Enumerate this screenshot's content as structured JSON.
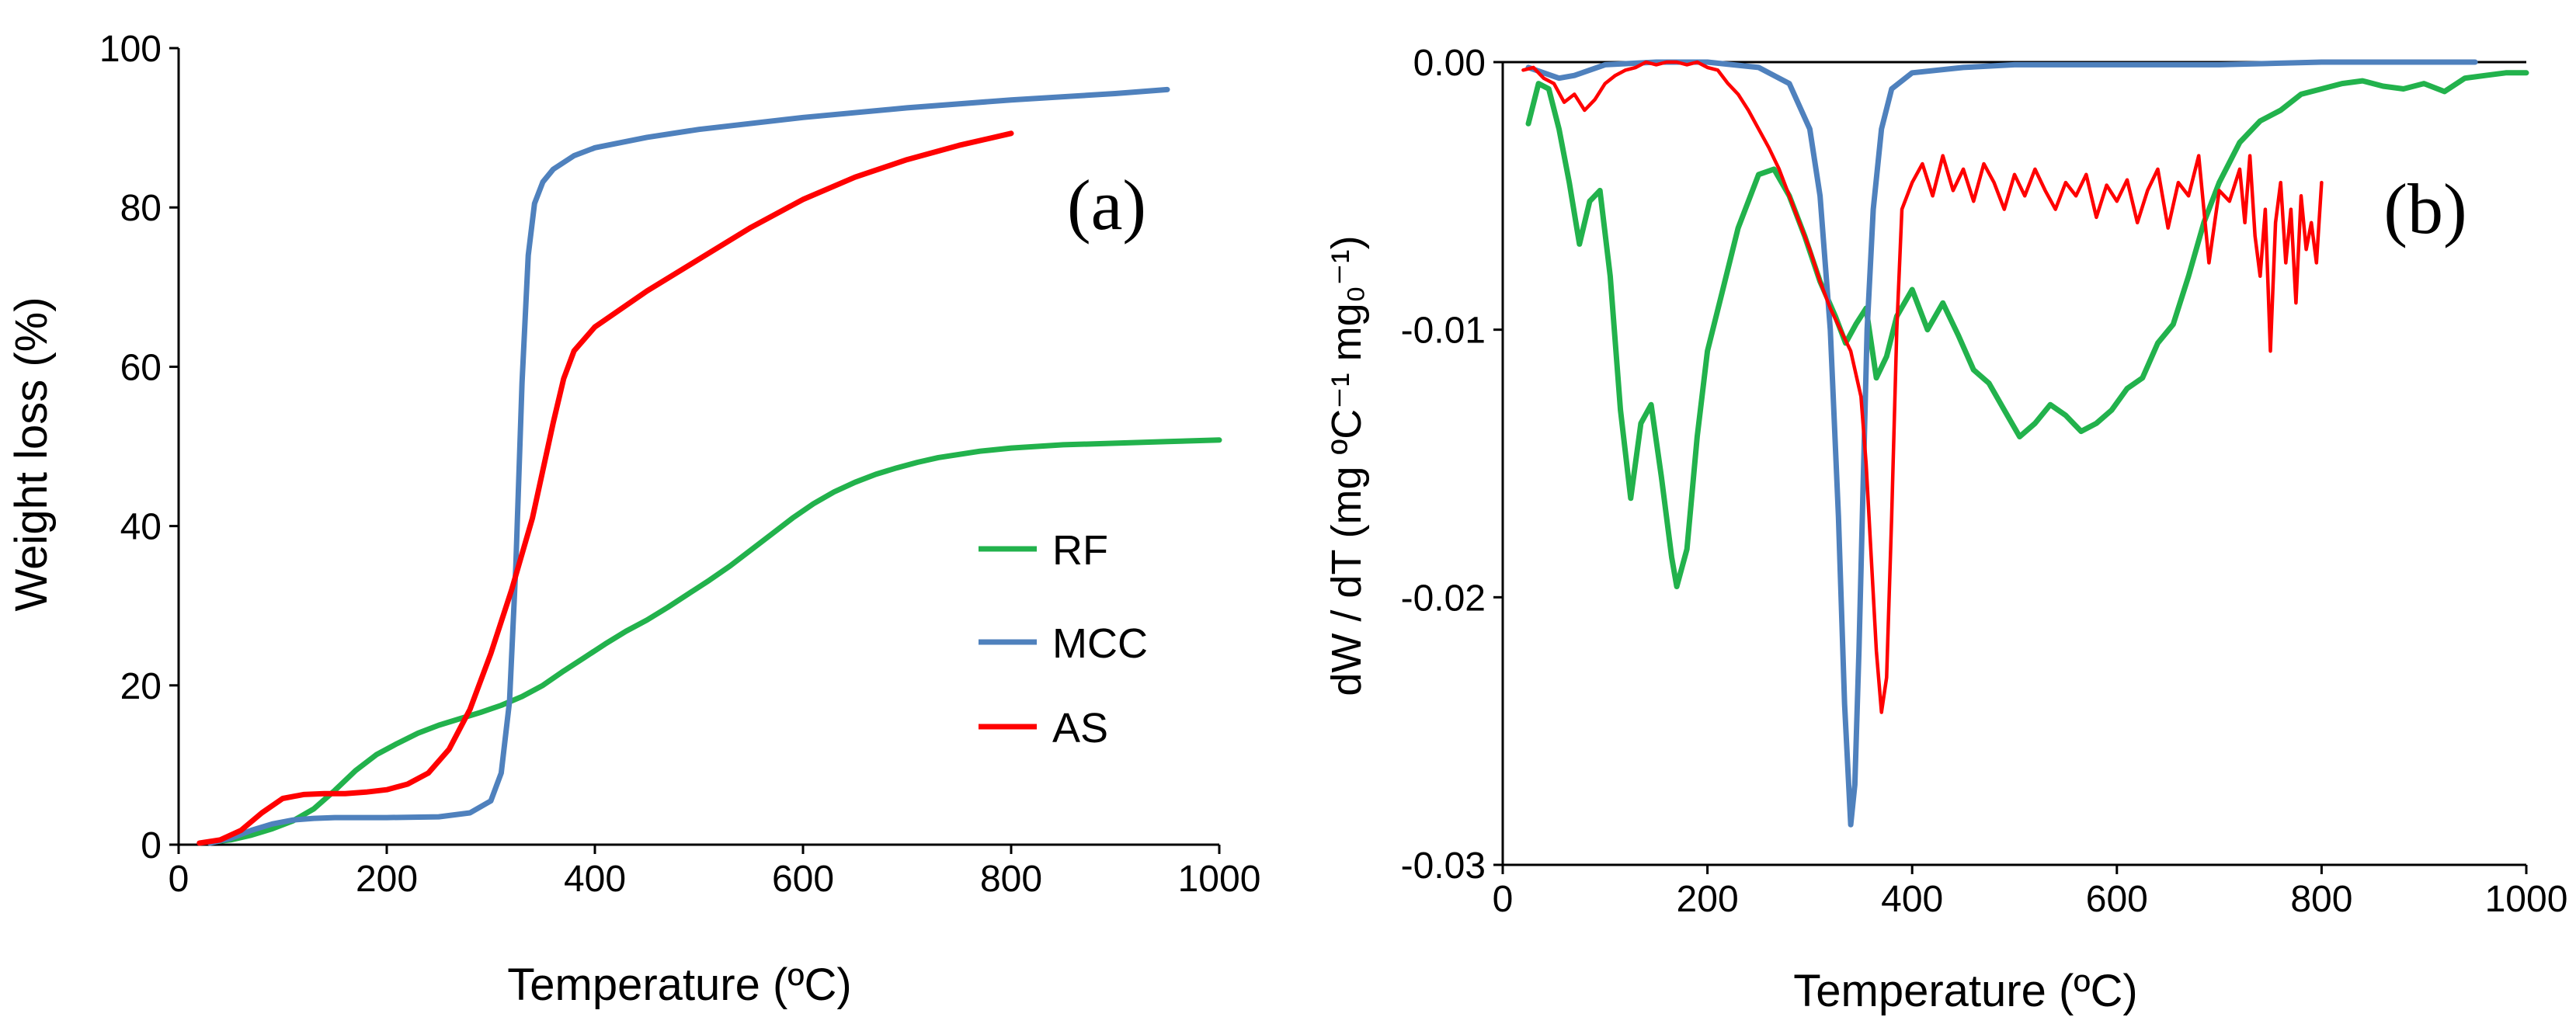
{
  "chart_data": [
    {
      "type": "line",
      "panel_label": "(a)",
      "title": "",
      "xlabel": "Temperature (ºC)",
      "ylabel": "Weight loss (%)",
      "xlim": [
        0,
        1000
      ],
      "ylim": [
        0,
        100
      ],
      "xticks": [
        0,
        200,
        400,
        600,
        800,
        1000
      ],
      "yticks": [
        0,
        20,
        40,
        60,
        80,
        100
      ],
      "xtick_labels": [
        "0",
        "200",
        "400",
        "600",
        "800",
        "1000"
      ],
      "ytick_labels": [
        "0",
        "20",
        "40",
        "60",
        "80",
        "100"
      ],
      "grid": false,
      "legend": "center-right",
      "series": [
        {
          "name": "RF",
          "color": "#22b24c",
          "x": [
            30,
            50,
            70,
            90,
            110,
            130,
            150,
            170,
            190,
            210,
            230,
            250,
            270,
            290,
            310,
            330,
            350,
            370,
            390,
            410,
            430,
            450,
            470,
            490,
            510,
            530,
            550,
            570,
            590,
            610,
            630,
            650,
            670,
            690,
            710,
            730,
            750,
            770,
            800,
            850,
            900,
            950,
            1000
          ],
          "y": [
            0.3,
            0.6,
            1.2,
            2.0,
            3.0,
            4.5,
            6.8,
            9.3,
            11.3,
            12.7,
            14.0,
            15.0,
            15.8,
            16.6,
            17.5,
            18.6,
            20.0,
            21.8,
            23.5,
            25.2,
            26.8,
            28.2,
            29.8,
            31.5,
            33.2,
            35.0,
            37.0,
            39.0,
            41.0,
            42.8,
            44.3,
            45.5,
            46.5,
            47.3,
            48.0,
            48.6,
            49.0,
            49.4,
            49.8,
            50.2,
            50.4,
            50.6,
            50.8
          ]
        },
        {
          "name": "MCC",
          "color": "#4f81bd",
          "x": [
            30,
            50,
            70,
            90,
            110,
            130,
            150,
            200,
            250,
            280,
            300,
            310,
            318,
            324,
            330,
            336,
            342,
            350,
            360,
            380,
            400,
            450,
            500,
            600,
            700,
            800,
            900,
            950
          ],
          "y": [
            0.2,
            0.8,
            1.8,
            2.6,
            3.1,
            3.3,
            3.4,
            3.4,
            3.5,
            4.0,
            5.5,
            9.0,
            18.0,
            35.0,
            58.0,
            74.0,
            80.5,
            83.2,
            84.8,
            86.5,
            87.5,
            88.8,
            89.8,
            91.3,
            92.5,
            93.5,
            94.3,
            94.8
          ]
        },
        {
          "name": "AS",
          "color": "#ff0000",
          "x": [
            20,
            40,
            60,
            80,
            100,
            120,
            140,
            160,
            180,
            200,
            220,
            240,
            260,
            280,
            300,
            320,
            340,
            360,
            370,
            380,
            400,
            450,
            500,
            550,
            600,
            650,
            700,
            750,
            800
          ],
          "y": [
            0.2,
            0.6,
            1.8,
            4.0,
            5.8,
            6.3,
            6.4,
            6.4,
            6.6,
            6.9,
            7.6,
            9.0,
            12.0,
            17.0,
            24.0,
            32.0,
            41.0,
            53.0,
            58.5,
            62.0,
            65.0,
            69.5,
            73.5,
            77.5,
            81.0,
            83.8,
            86.0,
            87.8,
            89.3
          ]
        }
      ]
    },
    {
      "type": "line",
      "panel_label": "(b)",
      "title": "",
      "xlabel": "Temperature (ºC)",
      "ylabel": "dW / dT (mg ºC⁻¹ mg₀⁻¹)",
      "xlim": [
        0,
        1000
      ],
      "ylim": [
        -0.03,
        0
      ],
      "xticks": [
        0,
        200,
        400,
        600,
        800,
        1000
      ],
      "yticks": [
        0,
        -0.01,
        -0.02,
        -0.03
      ],
      "xtick_labels": [
        "0",
        "200",
        "400",
        "600",
        "800",
        "1000"
      ],
      "ytick_labels": [
        "0.00",
        "-0.01",
        "-0.02",
        "-0.03"
      ],
      "grid": false,
      "legend": "none",
      "series": [
        {
          "name": "RF",
          "color": "#22b24c",
          "x": [
            25,
            35,
            45,
            55,
            65,
            75,
            85,
            95,
            105,
            115,
            125,
            135,
            145,
            155,
            165,
            170,
            180,
            190,
            200,
            215,
            230,
            250,
            265,
            280,
            295,
            310,
            325,
            335,
            345,
            355,
            365,
            375,
            385,
            400,
            415,
            430,
            445,
            460,
            475,
            490,
            505,
            520,
            535,
            550,
            565,
            580,
            595,
            610,
            625,
            640,
            655,
            670,
            685,
            700,
            720,
            740,
            760,
            780,
            800,
            820,
            840,
            860,
            880,
            900,
            920,
            940,
            960,
            980,
            1000
          ],
          "y": [
            -0.0023,
            -0.0008,
            -0.001,
            -0.0025,
            -0.0045,
            -0.0068,
            -0.0052,
            -0.0048,
            -0.008,
            -0.013,
            -0.0163,
            -0.0135,
            -0.0128,
            -0.0155,
            -0.0185,
            -0.0196,
            -0.0182,
            -0.014,
            -0.0108,
            -0.0085,
            -0.0062,
            -0.0042,
            -0.004,
            -0.005,
            -0.0065,
            -0.0082,
            -0.0095,
            -0.0105,
            -0.0098,
            -0.0092,
            -0.0118,
            -0.011,
            -0.0095,
            -0.0085,
            -0.01,
            -0.009,
            -0.0102,
            -0.0115,
            -0.012,
            -0.013,
            -0.014,
            -0.0135,
            -0.0128,
            -0.0132,
            -0.0138,
            -0.0135,
            -0.013,
            -0.0122,
            -0.0118,
            -0.0105,
            -0.0098,
            -0.008,
            -0.006,
            -0.0045,
            -0.003,
            -0.0022,
            -0.0018,
            -0.0012,
            -0.001,
            -0.0008,
            -0.0007,
            -0.0009,
            -0.001,
            -0.0008,
            -0.0011,
            -0.0006,
            -0.0005,
            -0.0004,
            -0.0004
          ]
        },
        {
          "name": "MCC",
          "color": "#4f81bd",
          "x": [
            25,
            40,
            55,
            70,
            85,
            100,
            150,
            200,
            250,
            280,
            300,
            310,
            320,
            328,
            334,
            340,
            344,
            348,
            352,
            356,
            362,
            370,
            380,
            400,
            450,
            500,
            600,
            700,
            800,
            900,
            950
          ],
          "y": [
            -0.0002,
            -0.0004,
            -0.0006,
            -0.0005,
            -0.0003,
            -0.0001,
            0.0,
            0.0,
            -0.0002,
            -0.0008,
            -0.0025,
            -0.005,
            -0.01,
            -0.017,
            -0.024,
            -0.0285,
            -0.027,
            -0.022,
            -0.016,
            -0.01,
            -0.0055,
            -0.0025,
            -0.001,
            -0.0004,
            -0.0002,
            -0.0001,
            -0.0001,
            -0.0001,
            0.0,
            0.0,
            0.0
          ]
        },
        {
          "name": "AS",
          "color": "#ff0000",
          "x": [
            20,
            30,
            40,
            50,
            60,
            70,
            80,
            90,
            100,
            110,
            120,
            130,
            140,
            150,
            160,
            170,
            180,
            190,
            200,
            210,
            220,
            230,
            240,
            250,
            260,
            270,
            280,
            290,
            300,
            310,
            320,
            330,
            340,
            350,
            355,
            360,
            365,
            370,
            375,
            380,
            385,
            390,
            400,
            410,
            420,
            430,
            440,
            450,
            460,
            470,
            480,
            490,
            500,
            510,
            520,
            530,
            540,
            550,
            560,
            570,
            580,
            590,
            600,
            610,
            620,
            630,
            640,
            650,
            660,
            670,
            680,
            690,
            700,
            710,
            720,
            725,
            730,
            735,
            740,
            745,
            750,
            755,
            760,
            765,
            770,
            775,
            780,
            785,
            790,
            795,
            800
          ],
          "y": [
            -0.0003,
            -0.0002,
            -0.0006,
            -0.0008,
            -0.0015,
            -0.0012,
            -0.0018,
            -0.0014,
            -0.0008,
            -0.0005,
            -0.0003,
            -0.0002,
            0.0,
            -0.0001,
            0.0,
            0.0,
            -0.0001,
            0.0,
            -0.0002,
            -0.0003,
            -0.0008,
            -0.0012,
            -0.0018,
            -0.0025,
            -0.0032,
            -0.004,
            -0.005,
            -0.006,
            -0.007,
            -0.0082,
            -0.0092,
            -0.01,
            -0.0108,
            -0.0125,
            -0.015,
            -0.0185,
            -0.022,
            -0.0243,
            -0.023,
            -0.017,
            -0.01,
            -0.0055,
            -0.0045,
            -0.0038,
            -0.005,
            -0.0035,
            -0.0048,
            -0.004,
            -0.0052,
            -0.0038,
            -0.0045,
            -0.0055,
            -0.0042,
            -0.005,
            -0.004,
            -0.0048,
            -0.0055,
            -0.0045,
            -0.005,
            -0.0042,
            -0.0058,
            -0.0046,
            -0.0052,
            -0.0044,
            -0.006,
            -0.0048,
            -0.004,
            -0.0062,
            -0.0045,
            -0.005,
            -0.0035,
            -0.0075,
            -0.0048,
            -0.0052,
            -0.004,
            -0.006,
            -0.0035,
            -0.0065,
            -0.008,
            -0.0055,
            -0.0108,
            -0.006,
            -0.0045,
            -0.0075,
            -0.0055,
            -0.009,
            -0.005,
            -0.007,
            -0.006,
            -0.0075,
            -0.0045
          ]
        }
      ]
    }
  ]
}
